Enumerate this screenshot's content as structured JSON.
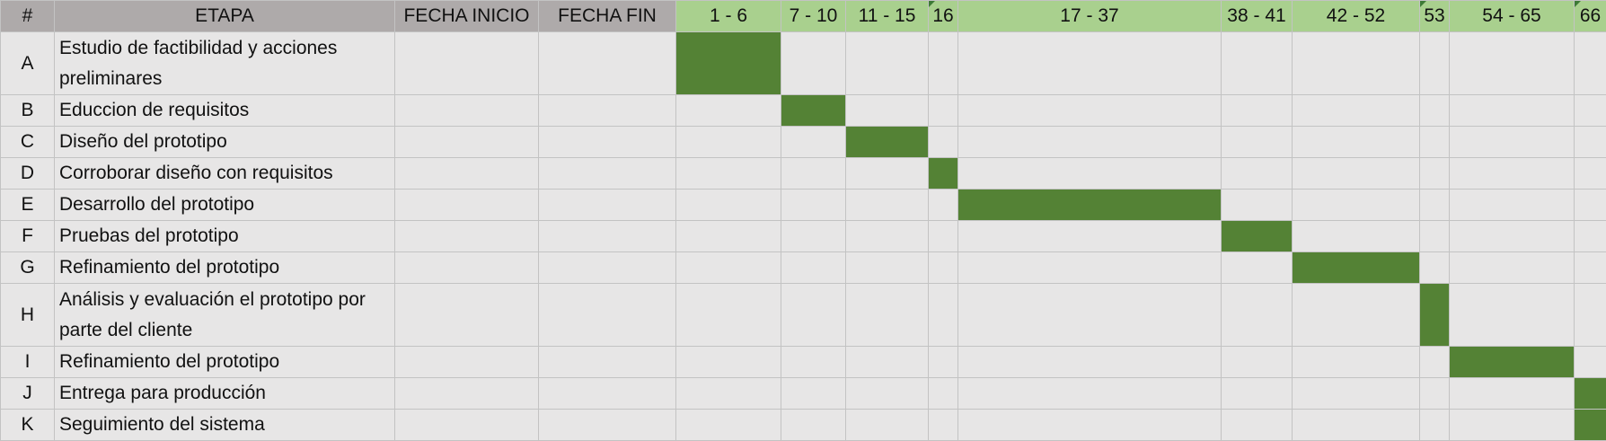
{
  "headers": {
    "num": "#",
    "stage": "ETAPA",
    "start": "FECHA INICIO",
    "end": "FECHA FIN",
    "periods": [
      "1 - 6",
      "7 - 10",
      "11 - 15",
      "16",
      "17 - 37",
      "38 - 41",
      "42 - 52",
      "53",
      "54 - 65",
      "66"
    ]
  },
  "colors": {
    "header_grey": "#aeaaaa",
    "header_green": "#a9d08e",
    "cell_bg": "#e7e6e6",
    "bar": "#548235"
  },
  "rows": [
    {
      "id": "A",
      "task": "Estudio de factibilidad y acciones preliminares",
      "start": "",
      "end": "",
      "bar_period": 0
    },
    {
      "id": "B",
      "task": "Educcion de requisitos",
      "start": "",
      "end": "",
      "bar_period": 1
    },
    {
      "id": "C",
      "task": "Diseño del prototipo",
      "start": "",
      "end": "",
      "bar_period": 2
    },
    {
      "id": "D",
      "task": "Corroborar diseño con requisitos",
      "start": "",
      "end": "",
      "bar_period": 3
    },
    {
      "id": "E",
      "task": "Desarrollo del prototipo",
      "start": "",
      "end": "",
      "bar_period": 4
    },
    {
      "id": "F",
      "task": "Pruebas del prototipo",
      "start": "",
      "end": "",
      "bar_period": 5
    },
    {
      "id": "G",
      "task": "Refinamiento del prototipo",
      "start": "",
      "end": "",
      "bar_period": 6
    },
    {
      "id": "H",
      "task": "Análisis y evaluación el prototipo por parte del cliente",
      "start": "",
      "end": "",
      "bar_period": 7
    },
    {
      "id": "I",
      "task": "Refinamiento del prototipo",
      "start": "",
      "end": "",
      "bar_period": 8
    },
    {
      "id": "J",
      "task": "Entrega para producción",
      "start": "",
      "end": "",
      "bar_period": 9
    },
    {
      "id": "K",
      "task": "Seguimiento del sistema",
      "start": "",
      "end": "",
      "bar_period": 9
    }
  ]
}
